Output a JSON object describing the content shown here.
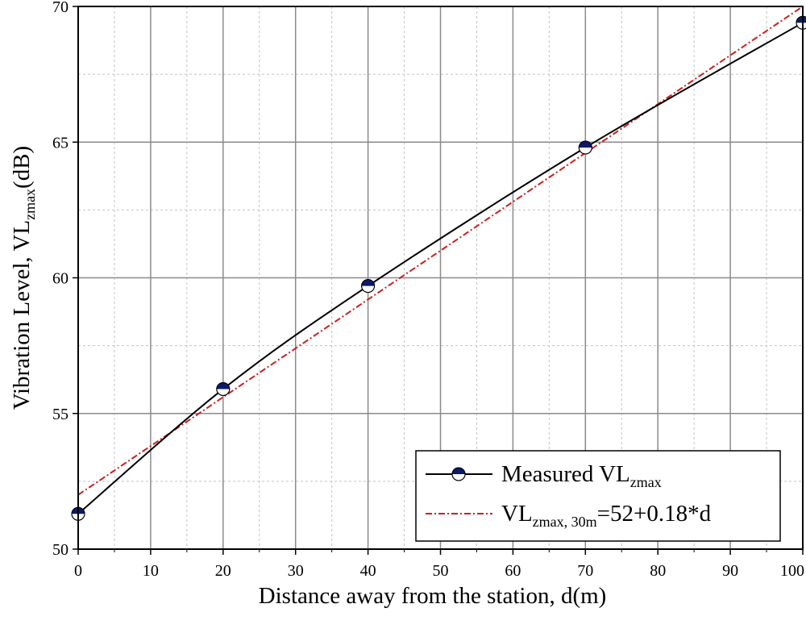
{
  "chart_data": {
    "type": "line",
    "title": "",
    "xlabel": "Distance away from the station, d(m)",
    "ylabel": {
      "main": "Vibration Level, VL",
      "subscript": "zmax",
      "unit": "(dB)"
    },
    "xlim": [
      0,
      100
    ],
    "ylim": [
      50,
      70
    ],
    "x_ticks": [
      0,
      10,
      20,
      30,
      40,
      50,
      60,
      70,
      80,
      90,
      100
    ],
    "x_tick_labels": [
      "0",
      "10",
      "20",
      "30",
      "40",
      "50",
      "60",
      "70",
      "80",
      "90",
      "100"
    ],
    "y_ticks": [
      50,
      55,
      60,
      65,
      70
    ],
    "y_tick_labels": [
      "50",
      "55",
      "60",
      "65",
      "70"
    ],
    "grid": true,
    "legend_position": "bottom-right",
    "series": [
      {
        "name": "Measured VL",
        "name_subscript": "zmax",
        "kind": "line+markers",
        "color": "#000000",
        "marker_color": "#0b1a6b",
        "x": [
          0,
          20,
          40,
          70,
          100
        ],
        "y": [
          51.3,
          55.9,
          59.7,
          64.8,
          69.4
        ]
      },
      {
        "name": "VL",
        "name_subscript": "zmax, 30m",
        "name_suffix": "=52+0.18*d",
        "kind": "fit-line",
        "color": "#cc1f1f",
        "intercept": 52,
        "slope": 0.18,
        "x": [
          0,
          100
        ],
        "y": [
          52,
          70
        ]
      }
    ]
  }
}
